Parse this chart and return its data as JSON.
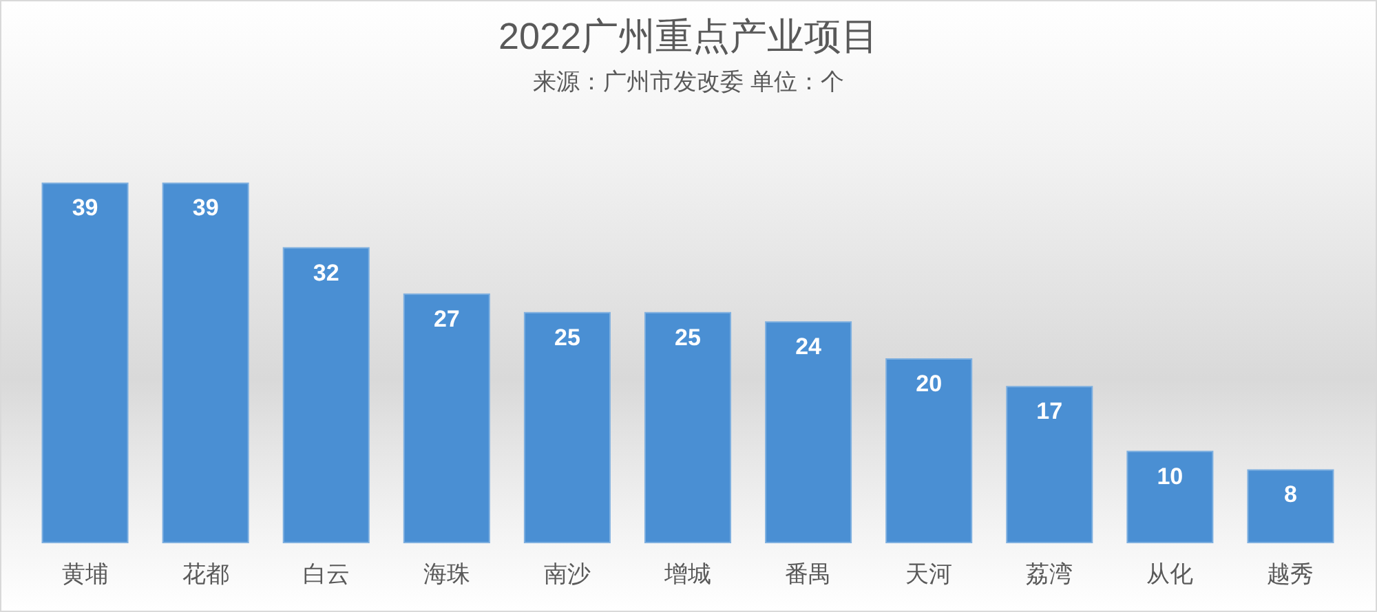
{
  "chart_data": {
    "type": "bar",
    "title": "2022广州重点产业项目",
    "subtitle": "来源：广州市发改委 单位：个",
    "categories": [
      "黄埔",
      "花都",
      "白云",
      "海珠",
      "南沙",
      "增城",
      "番禺",
      "天河",
      "荔湾",
      "从化",
      "越秀"
    ],
    "values": [
      39,
      39,
      32,
      27,
      25,
      25,
      24,
      20,
      17,
      10,
      8
    ],
    "color": "#4a8fd3",
    "data_labels": true
  }
}
